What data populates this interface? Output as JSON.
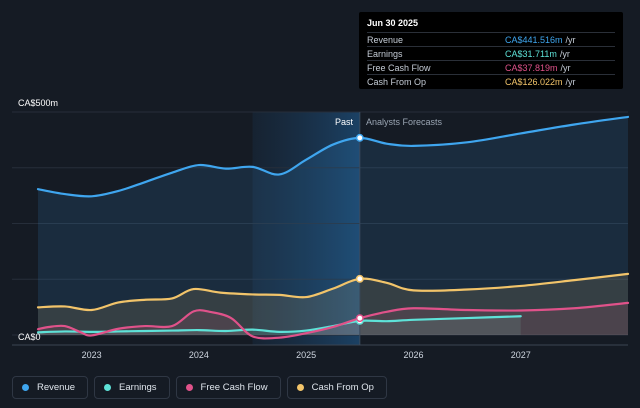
{
  "chart_data": {
    "type": "area",
    "ylabel_top": "CA$500m",
    "ylabel_bottom": "CA$0",
    "ylim": [
      0,
      500
    ],
    "xlim": [
      2022.5,
      2028.0
    ],
    "x_ticks": [
      "2023",
      "2024",
      "2025",
      "2026",
      "2027"
    ],
    "x_tick_values": [
      2023,
      2024,
      2025,
      2026,
      2027
    ],
    "divider_x": 2025.5,
    "forecast_shade_start": 2024.5,
    "past_label": "Past",
    "forecast_label": "Analysts Forecasts",
    "series": [
      {
        "name": "Revenue",
        "color": "#3fa6ef",
        "points": [
          [
            2022.5,
            327
          ],
          [
            2022.75,
            316
          ],
          [
            2023.0,
            311
          ],
          [
            2023.25,
            323
          ],
          [
            2023.5,
            343
          ],
          [
            2023.75,
            364
          ],
          [
            2024.0,
            381
          ],
          [
            2024.25,
            373
          ],
          [
            2024.5,
            377
          ],
          [
            2024.75,
            360
          ],
          [
            2025.0,
            393
          ],
          [
            2025.25,
            427
          ],
          [
            2025.5,
            442
          ],
          [
            2025.75,
            429
          ],
          [
            2026.0,
            424
          ],
          [
            2026.5,
            432
          ],
          [
            2027.0,
            452
          ],
          [
            2027.5,
            472
          ],
          [
            2028.0,
            489
          ]
        ]
      },
      {
        "name": "Earnings",
        "color": "#5ee2d8",
        "points": [
          [
            2022.5,
            6
          ],
          [
            2022.75,
            8
          ],
          [
            2023.0,
            7
          ],
          [
            2023.25,
            8
          ],
          [
            2023.5,
            9
          ],
          [
            2023.75,
            10
          ],
          [
            2024.0,
            11
          ],
          [
            2024.25,
            9
          ],
          [
            2024.5,
            12
          ],
          [
            2024.75,
            7
          ],
          [
            2025.0,
            10
          ],
          [
            2025.25,
            20
          ],
          [
            2025.5,
            31.7
          ],
          [
            2025.75,
            31
          ],
          [
            2026.0,
            34
          ],
          [
            2026.5,
            38
          ],
          [
            2027.0,
            42
          ]
        ]
      },
      {
        "name": "Free Cash Flow",
        "color": "#e0528a",
        "points": [
          [
            2022.5,
            13
          ],
          [
            2022.6,
            18
          ],
          [
            2022.75,
            20
          ],
          [
            2022.9,
            6
          ],
          [
            2023.0,
            -1
          ],
          [
            2023.25,
            14
          ],
          [
            2023.5,
            20
          ],
          [
            2023.75,
            20
          ],
          [
            2023.95,
            53
          ],
          [
            2024.1,
            52
          ],
          [
            2024.3,
            38
          ],
          [
            2024.5,
            -3
          ],
          [
            2024.75,
            -6
          ],
          [
            2025.0,
            4
          ],
          [
            2025.25,
            18
          ],
          [
            2025.5,
            37.8
          ],
          [
            2025.75,
            52
          ],
          [
            2026.0,
            60
          ],
          [
            2026.5,
            56
          ],
          [
            2027.0,
            55
          ],
          [
            2027.5,
            60
          ],
          [
            2028.0,
            72
          ]
        ]
      },
      {
        "name": "Cash From Op",
        "color": "#f2c46a",
        "points": [
          [
            2022.5,
            62
          ],
          [
            2022.75,
            64
          ],
          [
            2023.0,
            56
          ],
          [
            2023.25,
            73
          ],
          [
            2023.5,
            79
          ],
          [
            2023.75,
            82
          ],
          [
            2023.95,
            103
          ],
          [
            2024.2,
            95
          ],
          [
            2024.5,
            91
          ],
          [
            2024.75,
            90
          ],
          [
            2025.0,
            85
          ],
          [
            2025.25,
            104
          ],
          [
            2025.5,
            126
          ],
          [
            2025.75,
            117
          ],
          [
            2026.0,
            100
          ],
          [
            2026.5,
            102
          ],
          [
            2027.0,
            110
          ],
          [
            2027.5,
            123
          ],
          [
            2028.0,
            137
          ]
        ]
      }
    ],
    "markers_at": 2025.5
  },
  "tooltip": {
    "date": "Jun 30 2025",
    "unit": "/yr",
    "rows": [
      {
        "label": "Revenue",
        "value": "CA$441.516m",
        "color": "#3fa6ef"
      },
      {
        "label": "Earnings",
        "value": "CA$31.711m",
        "color": "#5ee2d8"
      },
      {
        "label": "Free Cash Flow",
        "value": "CA$37.819m",
        "color": "#e0528a"
      },
      {
        "label": "Cash From Op",
        "value": "CA$126.022m",
        "color": "#f2c46a"
      }
    ]
  },
  "legend": [
    {
      "label": "Revenue",
      "color": "#3fa6ef"
    },
    {
      "label": "Earnings",
      "color": "#5ee2d8"
    },
    {
      "label": "Free Cash Flow",
      "color": "#e0528a"
    },
    {
      "label": "Cash From Op",
      "color": "#f2c46a"
    }
  ]
}
